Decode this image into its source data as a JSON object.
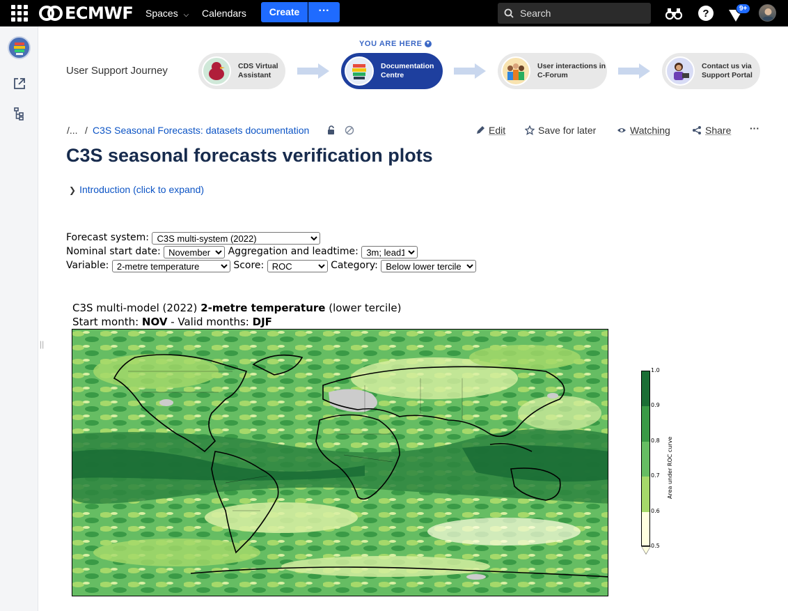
{
  "topbar": {
    "logo_text": "ECMWF",
    "nav": [
      "Spaces",
      "Calendars"
    ],
    "create_label": "Create",
    "more_label": "···",
    "search_placeholder": "Search",
    "notification_count": "9+"
  },
  "journey": {
    "title": "User Support Journey",
    "you_are_here": "YOU ARE HERE",
    "steps": [
      {
        "label": "CDS Virtual Assistant"
      },
      {
        "label": "Documentation Centre"
      },
      {
        "label": "User interactions in C-Forum"
      },
      {
        "label": "Contact us via Support Portal"
      }
    ]
  },
  "breadcrumb": {
    "ellipsis": "/...",
    "separator": "/",
    "parent": "C3S Seasonal Forecasts: datasets documentation"
  },
  "toolbar": {
    "edit": "Edit",
    "save": "Save for later",
    "watching": "Watching",
    "share": "Share",
    "more": "···"
  },
  "page": {
    "title": "C3S seasonal forecasts verification plots",
    "expand_label": "Introduction (click to expand)"
  },
  "form": {
    "forecast_system_label": "Forecast system:",
    "forecast_system_value": "C3S multi-system (2022)",
    "start_date_label": "Nominal start date:",
    "start_date_value": "November",
    "aggregation_label": "Aggregation and leadtime:",
    "aggregation_value": "3m; lead1",
    "variable_label": "Variable:",
    "variable_value": "2-metre temperature",
    "score_label": "Score:",
    "score_value": "ROC",
    "category_label": "Category:",
    "category_value": "Below lower tercile"
  },
  "figure": {
    "title_prefix": "C3S multi-model (2022) ",
    "title_bold": "2-metre temperature",
    "title_suffix": " (lower tercile)",
    "line2_prefix": "Start month: ",
    "line2_start": "NOV",
    "line2_mid": " - Valid months: ",
    "line2_valid": "DJF",
    "colorbar_label": "Area under ROC curve",
    "colorbar_ticks": [
      "1.0",
      "0.9",
      "0.8",
      "0.7",
      "0.6",
      "0.5"
    ],
    "colors": {
      "c1": "#ffffe0",
      "c2": "#d9f0a3",
      "c3": "#a6d96a",
      "c4": "#66bd63",
      "c5": "#3a9a46",
      "c6": "#1b6e35",
      "land_missing": "#cccccc"
    }
  }
}
